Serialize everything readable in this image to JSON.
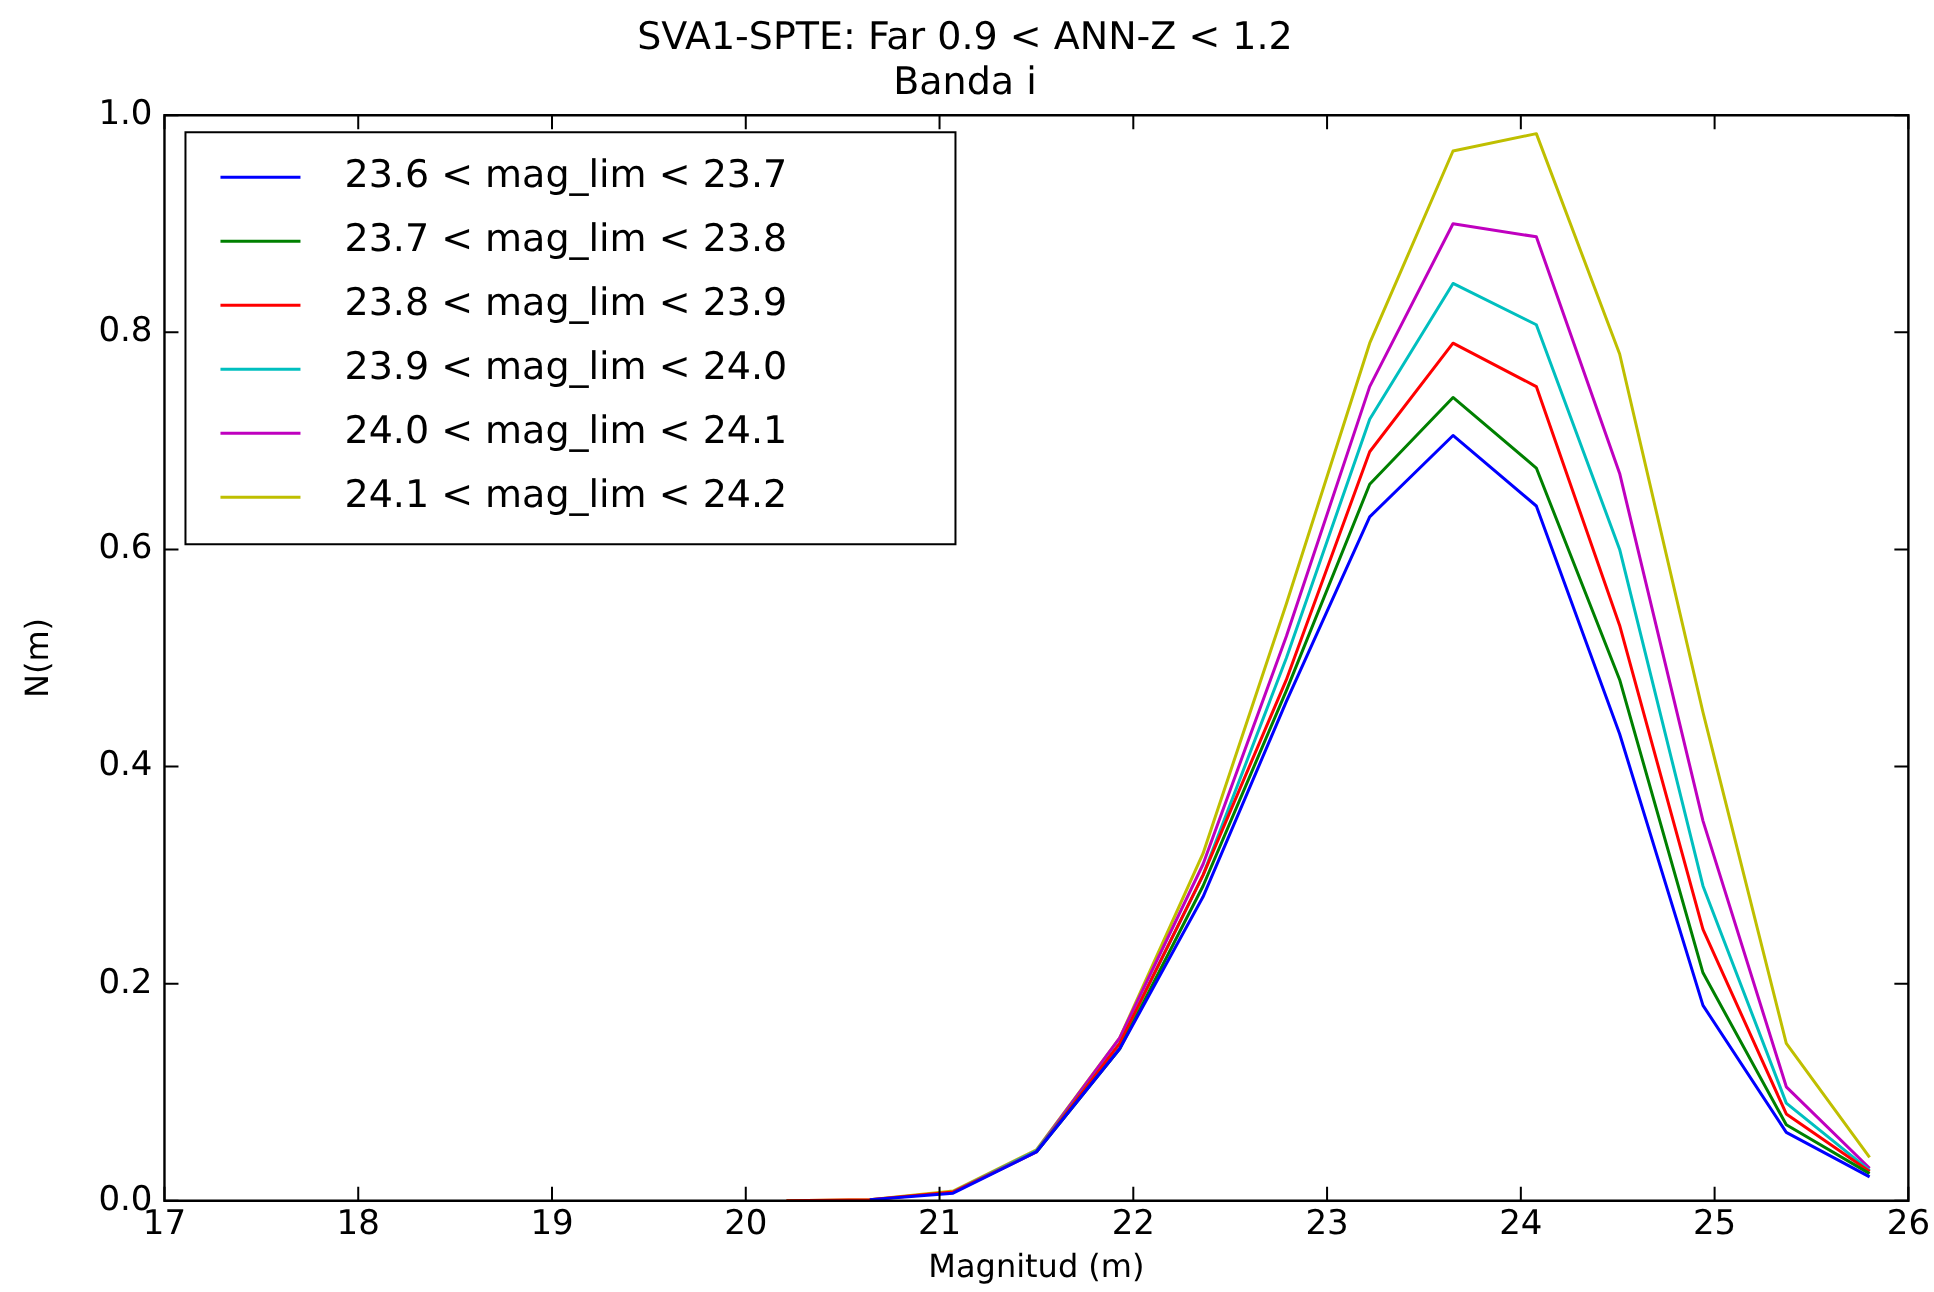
{
  "chart_data": {
    "type": "line",
    "title": "SVA1-SPTE: Far 0.9 < ANN-Z < 1.2",
    "subtitle": "Banda i",
    "xlabel": "Magnitud (m)",
    "ylabel": "N(m)",
    "x": [
      20.21,
      20.64,
      21.07,
      21.5,
      21.93,
      22.36,
      22.79,
      23.22,
      23.65,
      24.08,
      24.51,
      24.94,
      25.37,
      25.8
    ],
    "series": [
      {
        "name": "23.6 < mag_lim < 23.7",
        "color": "#0000ff",
        "values": [
          null,
          0.001,
          0.007,
          0.045,
          0.14,
          0.28,
          0.46,
          0.63,
          0.705,
          0.64,
          0.43,
          0.18,
          0.063,
          0.022
        ]
      },
      {
        "name": "23.7 < mag_lim < 23.8",
        "color": "#008000",
        "values": [
          null,
          null,
          null,
          0.045,
          0.14,
          0.29,
          0.47,
          0.66,
          0.74,
          0.675,
          0.48,
          0.21,
          0.07,
          0.025
        ]
      },
      {
        "name": "23.8 < mag_lim < 23.9",
        "color": "#ff0000",
        "values": [
          0,
          0.001,
          0.008,
          0.045,
          0.145,
          0.3,
          0.48,
          0.69,
          0.79,
          0.75,
          0.53,
          0.25,
          0.08,
          0.027
        ]
      },
      {
        "name": "23.9 < mag_lim < 24.0",
        "color": "#00bfbf",
        "values": [
          null,
          null,
          0.008,
          0.046,
          0.145,
          0.3,
          0.5,
          0.72,
          0.845,
          0.807,
          0.6,
          0.29,
          0.09,
          0.028
        ]
      },
      {
        "name": "24.0 < mag_lim < 24.1",
        "color": "#bf00bf",
        "values": [
          null,
          null,
          0.008,
          0.046,
          0.15,
          0.31,
          0.52,
          0.75,
          0.9,
          0.888,
          0.67,
          0.35,
          0.105,
          0.03
        ]
      },
      {
        "name": "24.1 < mag_lim < 24.2",
        "color": "#bfbf00",
        "values": [
          0,
          0.001,
          0.009,
          0.047,
          0.15,
          0.32,
          0.55,
          0.79,
          0.967,
          0.983,
          0.78,
          0.45,
          0.145,
          0.04
        ]
      }
    ],
    "xlim": [
      17,
      26
    ],
    "xticks": [
      17,
      18,
      19,
      20,
      21,
      22,
      23,
      24,
      25,
      26
    ],
    "ylim": [
      0,
      1
    ],
    "yticks": [
      {
        "value": 0,
        "label": "0.0"
      },
      0.2,
      0.4,
      0.6,
      0.8,
      {
        "value": 1,
        "label": "1.0"
      }
    ],
    "grid": false,
    "legend": "top left",
    "marker": "none",
    "line_style": "solid"
  }
}
